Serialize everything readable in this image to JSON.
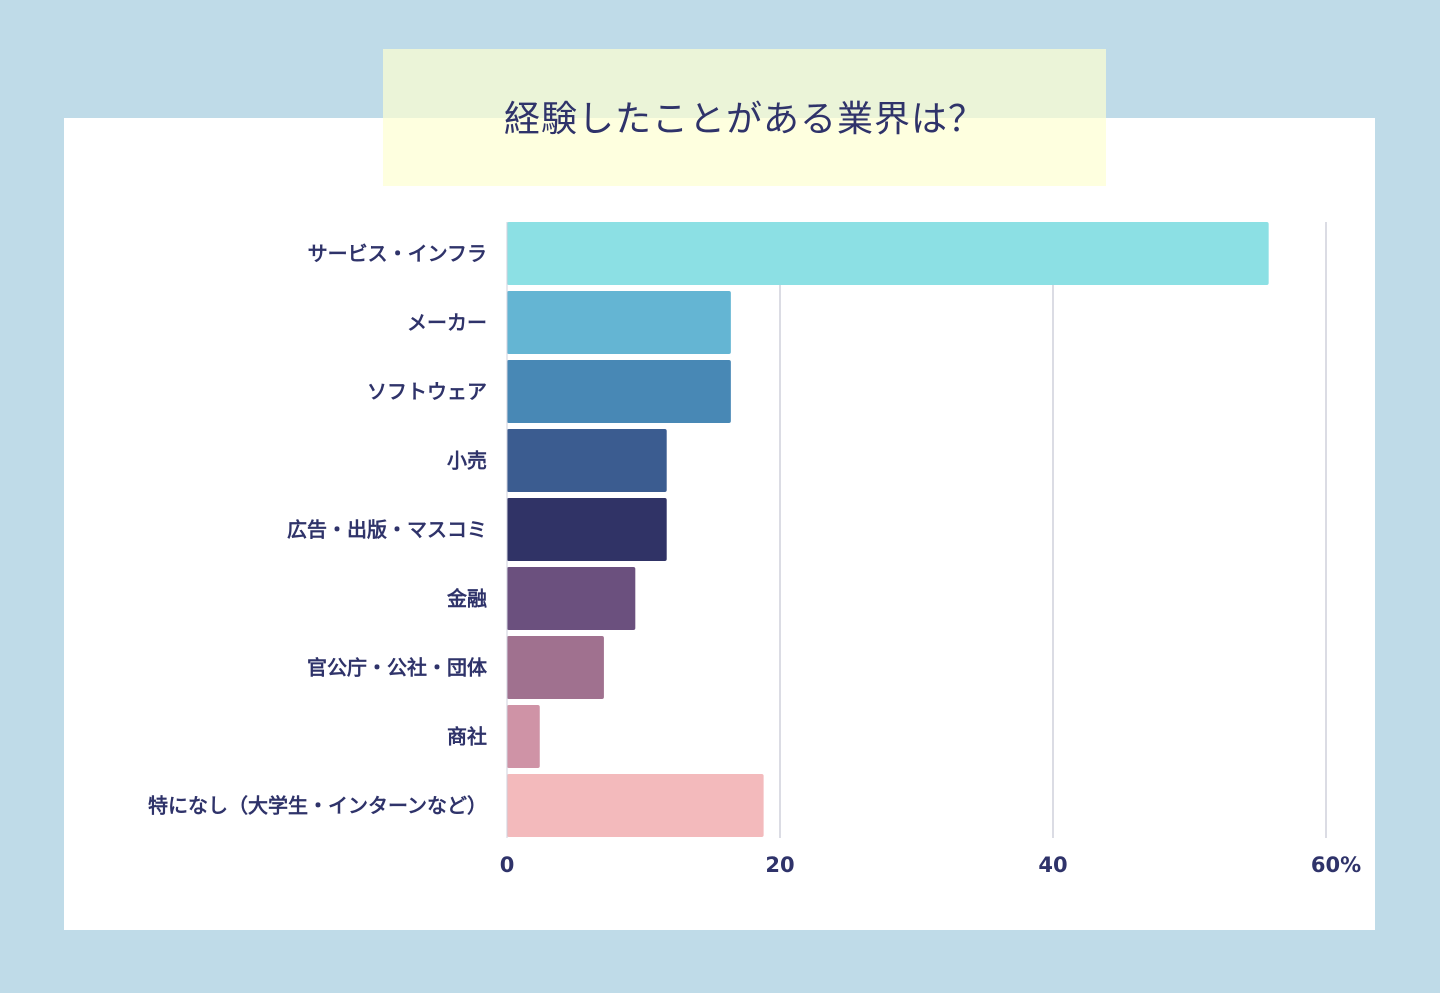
{
  "chart_data": {
    "type": "bar",
    "orientation": "horizontal",
    "title": "経験したことがある業界は？",
    "categories": [
      "サービス・インフラ",
      "メーカー",
      "ソフトウェア",
      "小売",
      "広告・出版・マスコミ",
      "金融",
      "官公庁・公社・団体",
      "商社",
      "特になし（大学生・インターンなど）"
    ],
    "values": [
      55.8,
      16.4,
      16.4,
      11.7,
      11.7,
      9.4,
      7.1,
      2.4,
      18.8
    ],
    "colors": [
      "#8ce0e4",
      "#64b5d3",
      "#4888b5",
      "#3b5c90",
      "#303366",
      "#6b507e",
      "#a0718f",
      "#cf93a6",
      "#f3babc"
    ],
    "xlim": [
      0,
      60
    ],
    "xticks": [
      0,
      20,
      40,
      60
    ],
    "xtick_labels": [
      "0",
      "20",
      "40",
      "60%"
    ],
    "xlabel": "",
    "ylabel": "",
    "grid": true,
    "legend": "none"
  }
}
